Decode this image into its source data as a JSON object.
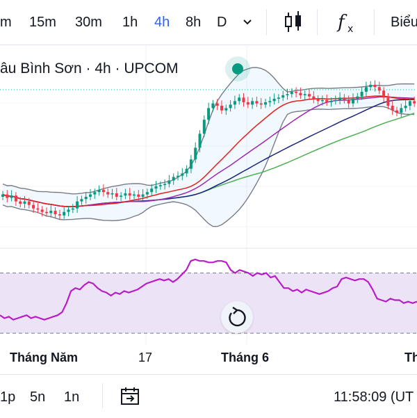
{
  "toolbar": {
    "timeframes": [
      "m",
      "15m",
      "30m",
      "1h",
      "4h",
      "8h",
      "D"
    ],
    "active_timeframe": "4h",
    "dropdown_icon": "chevron-down-icon",
    "chart_type_icon": "candlestick-icon",
    "indicators_icon": "fx-icon",
    "layout_label": "Biểu"
  },
  "legend": {
    "title": "âu Bình Sơn · 4h · UPCOM",
    "status": "market-open-dot"
  },
  "time_axis": {
    "labels": [
      "Tháng Năm",
      "17",
      "Tháng 6",
      "Th"
    ]
  },
  "bottom_bar": {
    "ranges": [
      "1p",
      "5n",
      "1n"
    ],
    "calendar_icon": "goto-date-icon",
    "clock": "11:58:09 (UT"
  },
  "colors": {
    "up": "#089981",
    "down": "#f23645",
    "bb_band": "#787b86",
    "bb_mid": "#e51c1c",
    "ma_purple": "#9c27b0",
    "ma_blue": "#1a237e",
    "ma_green": "#4caf50",
    "rsi_line": "#b71cc6",
    "rsi_fill": "#ede3f7",
    "accent": "#2962ff"
  },
  "chart_data": {
    "type": "candlestick",
    "main_closes": [
      5.72,
      5.69,
      5.71,
      5.66,
      5.64,
      5.66,
      5.63,
      5.6,
      5.59,
      5.57,
      5.56,
      5.58,
      5.55,
      5.54,
      5.57,
      5.59,
      5.6,
      5.66,
      5.68,
      5.7,
      5.72,
      5.74,
      5.76,
      5.74,
      5.72,
      5.73,
      5.7,
      5.71,
      5.73,
      5.71,
      5.72,
      5.7,
      5.72,
      5.74,
      5.77,
      5.79,
      5.8,
      5.81,
      5.84,
      5.87,
      5.88,
      5.9,
      5.94,
      6.02,
      6.12,
      6.24,
      6.36,
      6.46,
      6.5,
      6.48,
      6.44,
      6.46,
      6.49,
      6.52,
      6.55,
      6.51,
      6.49,
      6.52,
      6.5,
      6.49,
      6.51,
      6.52,
      6.54,
      6.55,
      6.57,
      6.58,
      6.6,
      6.59,
      6.57,
      6.58,
      6.56,
      6.54,
      6.52,
      6.53,
      6.51,
      6.52,
      6.53,
      6.55,
      6.53,
      6.5,
      6.54,
      6.56,
      6.6,
      6.64,
      6.66,
      6.64,
      6.61,
      6.55,
      6.48,
      6.44,
      6.42,
      6.46,
      6.48,
      6.52,
      6.5
    ],
    "rsi": [
      42,
      40,
      41,
      39,
      40,
      41,
      42,
      40,
      41,
      40,
      39,
      40,
      41,
      42,
      44,
      50,
      58,
      60,
      59,
      62,
      64,
      63,
      60,
      58,
      57,
      55,
      57,
      56,
      58,
      57,
      58,
      59,
      61,
      63,
      64,
      65,
      66,
      65,
      66,
      64,
      66,
      69,
      72,
      78,
      79,
      78,
      78,
      77,
      77,
      78,
      78,
      77,
      72,
      70,
      72,
      71,
      70,
      68,
      70,
      69,
      70,
      67,
      68,
      64,
      60,
      60,
      58,
      59,
      57,
      59,
      58,
      57,
      56,
      57,
      58,
      60,
      61,
      66,
      67,
      66,
      65,
      66,
      66,
      64,
      59,
      53,
      52,
      51,
      53,
      52,
      52,
      50,
      51,
      50,
      51
    ],
    "rsi_bands": [
      70,
      30
    ]
  }
}
